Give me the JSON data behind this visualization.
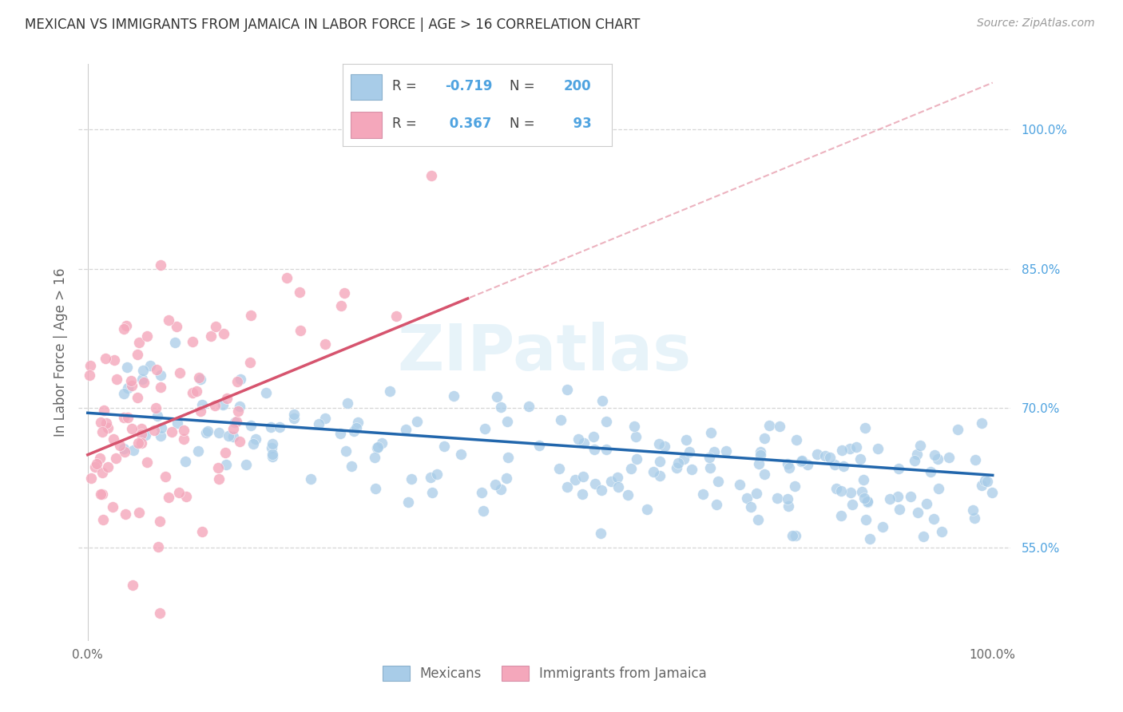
{
  "title": "MEXICAN VS IMMIGRANTS FROM JAMAICA IN LABOR FORCE | AGE > 16 CORRELATION CHART",
  "source": "Source: ZipAtlas.com",
  "ylabel": "In Labor Force | Age > 16",
  "watermark": "ZIPatlas",
  "blue_R": -0.719,
  "blue_N": 200,
  "pink_R": 0.367,
  "pink_N": 93,
  "blue_color": "#a8cce8",
  "pink_color": "#f4a7bb",
  "blue_line_color": "#2166ac",
  "pink_line_color": "#d6546e",
  "pink_dash_color": "#e8a0b0",
  "legend_label_blue": "Mexicans",
  "legend_label_pink": "Immigrants from Jamaica",
  "title_color": "#333333",
  "axis_label_color": "#666666",
  "tick_color": "#666666",
  "grid_color": "#cccccc",
  "background_color": "#ffffff",
  "right_label_color": "#4fa3e0",
  "legend_box_color": "#4272c4",
  "legend_pink_box_color": "#f48fb1"
}
